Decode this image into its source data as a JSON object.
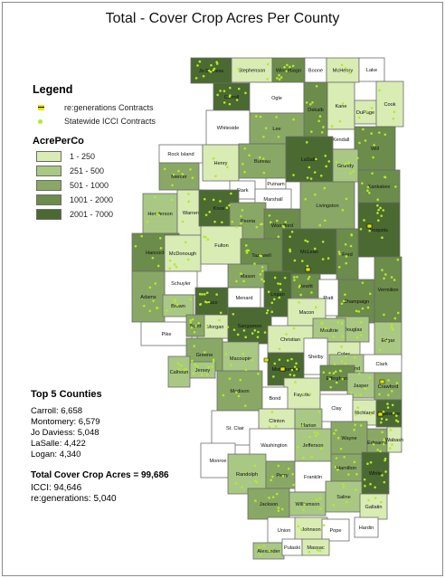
{
  "title": "Total - Cover Crop Acres Per County",
  "legend": {
    "title": "Legend",
    "items": [
      {
        "label": "re:generations Contracts"
      },
      {
        "label": "Statewide ICCI Contracts"
      }
    ],
    "scale_title": "AcrePerCo",
    "scale": [
      {
        "label": "1 - 250",
        "color": "#d8ecb4"
      },
      {
        "label": "251 - 500",
        "color": "#a9c884"
      },
      {
        "label": "501 - 1000",
        "color": "#89a865"
      },
      {
        "label": "1001 - 2000",
        "color": "#6b8c4b"
      },
      {
        "label": "2001 - 7000",
        "color": "#4a6a31"
      }
    ]
  },
  "top5": {
    "title": "Top 5 Counties",
    "items": [
      "Carroll: 6,658",
      "Montomery: 6,579",
      "Jo Daviess: 5,048",
      "LaSalle: 4,422",
      "Logan: 4,340"
    ]
  },
  "totals": {
    "total_label": "Total Cover Crop Acres = 99,686",
    "icci": "ICCI: 94,646",
    "regen": "re:generations: 5,040"
  },
  "colors": {
    "class0": "#ffffff",
    "dot": "#b6e82d",
    "regen": "#e8e500"
  },
  "counties": [
    {
      "name": "Jo Daviess",
      "c": 5
    },
    {
      "name": "Stephenson",
      "c": 1
    },
    {
      "name": "Winnebago",
      "c": 4
    },
    {
      "name": "Boone",
      "c": 0
    },
    {
      "name": "McHenry",
      "c": 1
    },
    {
      "name": "Lake",
      "c": 0
    },
    {
      "name": "Carroll",
      "c": 5
    },
    {
      "name": "Ogle",
      "c": 0
    },
    {
      "name": "Dekalb",
      "c": 4
    },
    {
      "name": "Kane",
      "c": 1
    },
    {
      "name": "DuPage",
      "c": 1
    },
    {
      "name": "Cook",
      "c": 1
    },
    {
      "name": "Whiteside",
      "c": 0
    },
    {
      "name": "Lee",
      "c": 3
    },
    {
      "name": "Kendall",
      "c": 0
    },
    {
      "name": "Will",
      "c": 4
    },
    {
      "name": "Rock Island",
      "c": 0
    },
    {
      "name": "Henry",
      "c": 1
    },
    {
      "name": "Bureau",
      "c": 3
    },
    {
      "name": "LaSalle",
      "c": 5
    },
    {
      "name": "Grundy",
      "c": 2
    },
    {
      "name": "Kankakee",
      "c": 4
    },
    {
      "name": "Mercer",
      "c": 3
    },
    {
      "name": "Stark",
      "c": 0
    },
    {
      "name": "Putnam",
      "c": 0
    },
    {
      "name": "Marshall",
      "c": 0
    },
    {
      "name": "Henderson",
      "c": 2
    },
    {
      "name": "Warren",
      "c": 1
    },
    {
      "name": "Knox",
      "c": 5
    },
    {
      "name": "Peoria",
      "c": 3
    },
    {
      "name": "Woodford",
      "c": 4
    },
    {
      "name": "Livingston",
      "c": 3
    },
    {
      "name": "Iroquois",
      "c": 5
    },
    {
      "name": "Hancock",
      "c": 4
    },
    {
      "name": "McDonough",
      "c": 1
    },
    {
      "name": "Fulton",
      "c": 1
    },
    {
      "name": "Tazewell",
      "c": 4
    },
    {
      "name": "McLean",
      "c": 5
    },
    {
      "name": "Ford",
      "c": 4
    },
    {
      "name": "Schuyler",
      "c": 0
    },
    {
      "name": "Mason",
      "c": 3
    },
    {
      "name": "Logan",
      "c": 5
    },
    {
      "name": "Dewitt",
      "c": 4
    },
    {
      "name": "Champaign",
      "c": 4
    },
    {
      "name": "Vermilion",
      "c": 4
    },
    {
      "name": "Adams",
      "c": 3
    },
    {
      "name": "Brown",
      "c": 2
    },
    {
      "name": "Cass",
      "c": 5
    },
    {
      "name": "Menard",
      "c": 0
    },
    {
      "name": "Piatt",
      "c": 0
    },
    {
      "name": "Pike",
      "c": 0
    },
    {
      "name": "Morgan",
      "c": 1
    },
    {
      "name": "Sangamon",
      "c": 5
    },
    {
      "name": "Macon",
      "c": 1
    },
    {
      "name": "Douglas",
      "c": 2
    },
    {
      "name": "Edgar",
      "c": 2
    },
    {
      "name": "Scott",
      "c": 3
    },
    {
      "name": "Christian",
      "c": 1
    },
    {
      "name": "Moultrie",
      "c": 2
    },
    {
      "name": "Coles",
      "c": 1
    },
    {
      "name": "Greene",
      "c": 3
    },
    {
      "name": "Macoupin",
      "c": 2
    },
    {
      "name": "Montgomery",
      "c": 5
    },
    {
      "name": "Shelby",
      "c": 0
    },
    {
      "name": "Clark",
      "c": 0
    },
    {
      "name": "Calhoun",
      "c": 2
    },
    {
      "name": "Jersey",
      "c": 2
    },
    {
      "name": "Cumberland",
      "c": 2
    },
    {
      "name": "Fayette",
      "c": 1
    },
    {
      "name": "Effingham",
      "c": 4
    },
    {
      "name": "Jasper",
      "c": 2
    },
    {
      "name": "Crawford",
      "c": 3
    },
    {
      "name": "Madison",
      "c": 3
    },
    {
      "name": "Bond",
      "c": 0
    },
    {
      "name": "Clay",
      "c": 0
    },
    {
      "name": "Richland",
      "c": 1
    },
    {
      "name": "Lawrence",
      "c": 5
    },
    {
      "name": "Clinton",
      "c": 1
    },
    {
      "name": "Marion",
      "c": 2
    },
    {
      "name": "St. Clair",
      "c": 0
    },
    {
      "name": "Washington",
      "c": 0
    },
    {
      "name": "Jefferson",
      "c": 2
    },
    {
      "name": "Wayne",
      "c": 3
    },
    {
      "name": "Edwards",
      "c": 3
    },
    {
      "name": "Wabash",
      "c": 1
    },
    {
      "name": "Monroe",
      "c": 0
    },
    {
      "name": "Randolph",
      "c": 2
    },
    {
      "name": "Perry",
      "c": 3
    },
    {
      "name": "Franklin",
      "c": 0
    },
    {
      "name": "Hamilton",
      "c": 3
    },
    {
      "name": "White",
      "c": 5
    },
    {
      "name": "Jackson",
      "c": 3
    },
    {
      "name": "Williamson",
      "c": 2
    },
    {
      "name": "Saline",
      "c": 2
    },
    {
      "name": "Gallatin",
      "c": 1
    },
    {
      "name": "Union",
      "c": 0
    },
    {
      "name": "Johnson",
      "c": 1
    },
    {
      "name": "Pope",
      "c": 0
    },
    {
      "name": "Hardin",
      "c": 0
    },
    {
      "name": "Alexander",
      "c": 2
    },
    {
      "name": "Pulaski",
      "c": 0
    },
    {
      "name": "Massac",
      "c": 1
    }
  ]
}
